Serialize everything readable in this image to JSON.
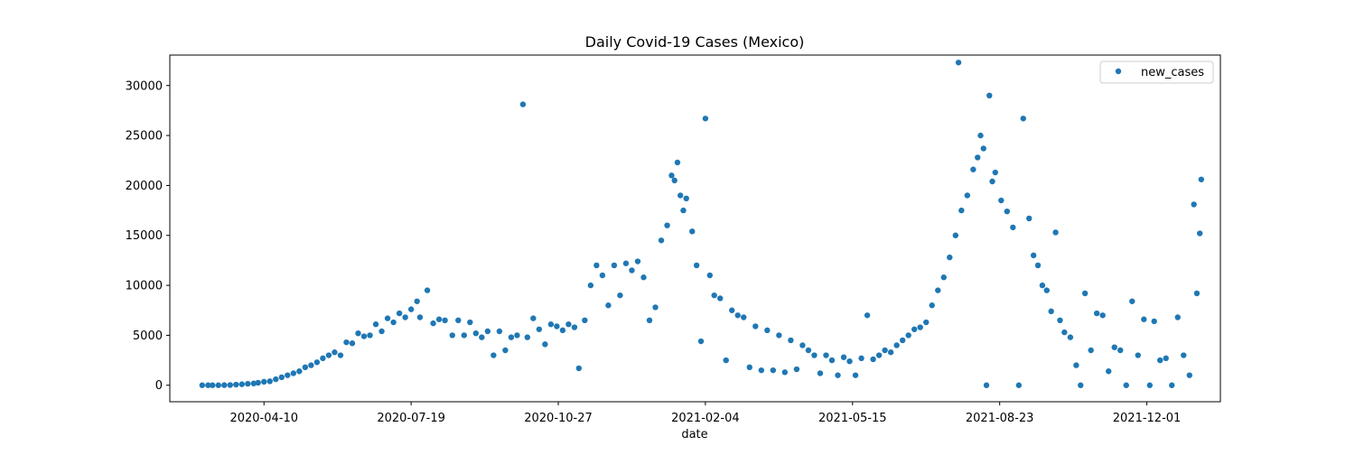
{
  "chart_data": {
    "type": "scatter",
    "title": "Daily Covid-19 Cases (Mexico)",
    "xlabel": "date",
    "ylabel": "",
    "x_range": [
      "2020-02-06",
      "2022-01-20"
    ],
    "ylim": [
      -1650,
      33050
    ],
    "x_ticks": [
      "2020-04-10",
      "2020-07-19",
      "2020-10-27",
      "2021-02-04",
      "2021-05-15",
      "2021-08-23",
      "2021-12-01"
    ],
    "y_ticks": [
      0,
      5000,
      10000,
      15000,
      20000,
      25000,
      30000
    ],
    "grid": false,
    "legend": {
      "position": "top-right",
      "entries": [
        "new_cases"
      ]
    },
    "color": "#1f77b4",
    "series": [
      {
        "name": "new_cases",
        "points": [
          [
            "2020-02-28",
            1
          ],
          [
            "2020-03-03",
            2
          ],
          [
            "2020-03-06",
            1
          ],
          [
            "2020-03-10",
            3
          ],
          [
            "2020-03-14",
            14
          ],
          [
            "2020-03-18",
            25
          ],
          [
            "2020-03-22",
            65
          ],
          [
            "2020-03-26",
            100
          ],
          [
            "2020-03-30",
            150
          ],
          [
            "2020-04-03",
            180
          ],
          [
            "2020-04-06",
            250
          ],
          [
            "2020-04-10",
            350
          ],
          [
            "2020-04-14",
            400
          ],
          [
            "2020-04-18",
            600
          ],
          [
            "2020-04-22",
            800
          ],
          [
            "2020-04-26",
            1000
          ],
          [
            "2020-04-30",
            1200
          ],
          [
            "2020-05-04",
            1400
          ],
          [
            "2020-05-08",
            1800
          ],
          [
            "2020-05-12",
            2000
          ],
          [
            "2020-05-16",
            2300
          ],
          [
            "2020-05-20",
            2700
          ],
          [
            "2020-05-24",
            3000
          ],
          [
            "2020-05-28",
            3300
          ],
          [
            "2020-06-01",
            3000
          ],
          [
            "2020-06-05",
            4300
          ],
          [
            "2020-06-09",
            4200
          ],
          [
            "2020-06-13",
            5200
          ],
          [
            "2020-06-17",
            4900
          ],
          [
            "2020-06-21",
            5000
          ],
          [
            "2020-06-25",
            6100
          ],
          [
            "2020-06-29",
            5400
          ],
          [
            "2020-07-03",
            6700
          ],
          [
            "2020-07-07",
            6300
          ],
          [
            "2020-07-11",
            7200
          ],
          [
            "2020-07-15",
            6800
          ],
          [
            "2020-07-19",
            7600
          ],
          [
            "2020-07-23",
            8400
          ],
          [
            "2020-07-25",
            6800
          ],
          [
            "2020-07-30",
            9500
          ],
          [
            "2020-08-03",
            6200
          ],
          [
            "2020-08-07",
            6600
          ],
          [
            "2020-08-11",
            6500
          ],
          [
            "2020-08-16",
            5000
          ],
          [
            "2020-08-20",
            6500
          ],
          [
            "2020-08-24",
            5000
          ],
          [
            "2020-08-28",
            6300
          ],
          [
            "2020-09-01",
            5200
          ],
          [
            "2020-09-05",
            4800
          ],
          [
            "2020-09-09",
            5400
          ],
          [
            "2020-09-13",
            3000
          ],
          [
            "2020-09-17",
            5400
          ],
          [
            "2020-09-21",
            3500
          ],
          [
            "2020-09-25",
            4800
          ],
          [
            "2020-09-29",
            5000
          ],
          [
            "2020-10-03",
            28115
          ],
          [
            "2020-10-06",
            4800
          ],
          [
            "2020-10-10",
            6700
          ],
          [
            "2020-10-14",
            5600
          ],
          [
            "2020-10-18",
            4100
          ],
          [
            "2020-10-22",
            6100
          ],
          [
            "2020-10-26",
            5900
          ],
          [
            "2020-10-30",
            5500
          ],
          [
            "2020-11-03",
            6100
          ],
          [
            "2020-11-07",
            5800
          ],
          [
            "2020-11-10",
            1700
          ],
          [
            "2020-11-14",
            6500
          ],
          [
            "2020-11-18",
            10000
          ],
          [
            "2020-11-22",
            12000
          ],
          [
            "2020-11-26",
            11000
          ],
          [
            "2020-11-30",
            8000
          ],
          [
            "2020-12-04",
            12000
          ],
          [
            "2020-12-08",
            9000
          ],
          [
            "2020-12-12",
            12200
          ],
          [
            "2020-12-16",
            11500
          ],
          [
            "2020-12-20",
            12400
          ],
          [
            "2020-12-24",
            10800
          ],
          [
            "2020-12-28",
            6500
          ],
          [
            "2021-01-01",
            7800
          ],
          [
            "2021-01-05",
            14500
          ],
          [
            "2021-01-09",
            16000
          ],
          [
            "2021-01-12",
            21000
          ],
          [
            "2021-01-14",
            20500
          ],
          [
            "2021-01-16",
            22300
          ],
          [
            "2021-01-18",
            19000
          ],
          [
            "2021-01-20",
            17500
          ],
          [
            "2021-01-22",
            18700
          ],
          [
            "2021-01-26",
            15400
          ],
          [
            "2021-01-29",
            12000
          ],
          [
            "2021-02-01",
            4400
          ],
          [
            "2021-02-04",
            26700
          ],
          [
            "2021-02-07",
            11000
          ],
          [
            "2021-02-10",
            9000
          ],
          [
            "2021-02-14",
            8700
          ],
          [
            "2021-02-18",
            2500
          ],
          [
            "2021-02-22",
            7500
          ],
          [
            "2021-02-26",
            7000
          ],
          [
            "2021-03-02",
            6800
          ],
          [
            "2021-03-06",
            1800
          ],
          [
            "2021-03-10",
            5900
          ],
          [
            "2021-03-14",
            1500
          ],
          [
            "2021-03-18",
            5500
          ],
          [
            "2021-03-22",
            1500
          ],
          [
            "2021-03-26",
            5000
          ],
          [
            "2021-03-30",
            1300
          ],
          [
            "2021-04-03",
            4500
          ],
          [
            "2021-04-07",
            1600
          ],
          [
            "2021-04-11",
            4000
          ],
          [
            "2021-04-15",
            3500
          ],
          [
            "2021-04-19",
            3000
          ],
          [
            "2021-04-23",
            1200
          ],
          [
            "2021-04-27",
            3000
          ],
          [
            "2021-05-01",
            2500
          ],
          [
            "2021-05-05",
            1000
          ],
          [
            "2021-05-09",
            2800
          ],
          [
            "2021-05-13",
            2400
          ],
          [
            "2021-05-17",
            1000
          ],
          [
            "2021-05-21",
            2700
          ],
          [
            "2021-05-25",
            7000
          ],
          [
            "2021-05-29",
            2600
          ],
          [
            "2021-06-02",
            3000
          ],
          [
            "2021-06-06",
            3500
          ],
          [
            "2021-06-10",
            3300
          ],
          [
            "2021-06-14",
            4000
          ],
          [
            "2021-06-18",
            4500
          ],
          [
            "2021-06-22",
            5000
          ],
          [
            "2021-06-26",
            5600
          ],
          [
            "2021-06-30",
            5800
          ],
          [
            "2021-07-04",
            6300
          ],
          [
            "2021-07-08",
            8000
          ],
          [
            "2021-07-12",
            9500
          ],
          [
            "2021-07-16",
            10800
          ],
          [
            "2021-07-20",
            12800
          ],
          [
            "2021-07-24",
            15000
          ],
          [
            "2021-07-26",
            32300
          ],
          [
            "2021-07-28",
            17500
          ],
          [
            "2021-08-01",
            19000
          ],
          [
            "2021-08-05",
            21600
          ],
          [
            "2021-08-08",
            22800
          ],
          [
            "2021-08-10",
            25000
          ],
          [
            "2021-08-12",
            23700
          ],
          [
            "2021-08-14",
            0
          ],
          [
            "2021-08-16",
            29000
          ],
          [
            "2021-08-18",
            20400
          ],
          [
            "2021-08-20",
            21300
          ],
          [
            "2021-08-24",
            18500
          ],
          [
            "2021-08-28",
            17400
          ],
          [
            "2021-09-01",
            15800
          ],
          [
            "2021-09-05",
            0
          ],
          [
            "2021-09-08",
            26700
          ],
          [
            "2021-09-12",
            16700
          ],
          [
            "2021-09-15",
            13000
          ],
          [
            "2021-09-18",
            12000
          ],
          [
            "2021-09-21",
            10000
          ],
          [
            "2021-09-24",
            9500
          ],
          [
            "2021-09-27",
            7400
          ],
          [
            "2021-09-30",
            15300
          ],
          [
            "2021-10-03",
            6500
          ],
          [
            "2021-10-06",
            5300
          ],
          [
            "2021-10-10",
            4800
          ],
          [
            "2021-10-14",
            2000
          ],
          [
            "2021-10-17",
            0
          ],
          [
            "2021-10-20",
            9200
          ],
          [
            "2021-10-24",
            3500
          ],
          [
            "2021-10-28",
            7200
          ],
          [
            "2021-11-01",
            7000
          ],
          [
            "2021-11-05",
            1400
          ],
          [
            "2021-11-09",
            3800
          ],
          [
            "2021-11-13",
            3500
          ],
          [
            "2021-11-17",
            0
          ],
          [
            "2021-11-21",
            8400
          ],
          [
            "2021-11-25",
            3000
          ],
          [
            "2021-11-29",
            6600
          ],
          [
            "2021-12-03",
            0
          ],
          [
            "2021-12-06",
            6400
          ],
          [
            "2021-12-10",
            2500
          ],
          [
            "2021-12-14",
            2700
          ],
          [
            "2021-12-18",
            0
          ],
          [
            "2021-12-22",
            6800
          ],
          [
            "2021-12-26",
            3000
          ],
          [
            "2021-12-30",
            1000
          ],
          [
            "2022-01-02",
            18100
          ],
          [
            "2022-01-04",
            9200
          ],
          [
            "2022-01-06",
            15200
          ],
          [
            "2022-01-07",
            20600
          ]
        ]
      }
    ]
  }
}
